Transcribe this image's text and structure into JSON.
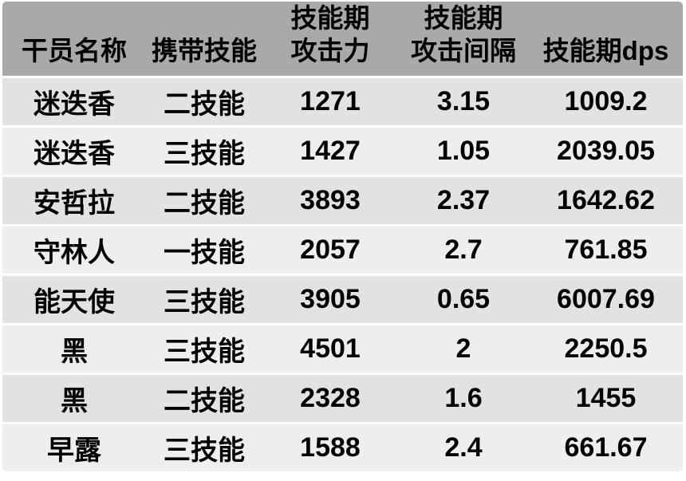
{
  "colors": {
    "page-bg": "#ffffff",
    "header-bg": "#a9a9a9",
    "row-odd-bg": "#e2e2e2",
    "row-even-bg": "#eeeeee",
    "separator": "#ffffff",
    "text": "#000000"
  },
  "chart_data": {
    "type": "table",
    "columns": [
      "干员名称",
      "携带技能",
      "技能期攻击力",
      "技能期攻击间隔",
      "技能期dps"
    ],
    "column_display": [
      "干员名称",
      "携带技能",
      "技能期\n攻击力",
      "技能期\n攻击间隔",
      "技能期dps"
    ],
    "column_ids": [
      "operator-name",
      "carried-skill",
      "skill-attack",
      "skill-attack-interval",
      "skill-dps"
    ],
    "rows": [
      [
        "迷迭香",
        "二技能",
        1271,
        3.15,
        1009.2
      ],
      [
        "迷迭香",
        "三技能",
        1427,
        1.05,
        2039.05
      ],
      [
        "安哲拉",
        "二技能",
        3893,
        2.37,
        1642.62
      ],
      [
        "守林人",
        "一技能",
        2057,
        2.7,
        761.85
      ],
      [
        "能天使",
        "三技能",
        3905,
        0.65,
        6007.69
      ],
      [
        "黑",
        "三技能",
        4501,
        2,
        2250.5
      ],
      [
        "黑",
        "二技能",
        2328,
        1.6,
        1455
      ],
      [
        "早露",
        "三技能",
        1588,
        2.4,
        661.67
      ]
    ],
    "layout": {
      "striped": true,
      "grid": "horizontal-white-separators",
      "header_lines": 2,
      "align": "center"
    }
  }
}
